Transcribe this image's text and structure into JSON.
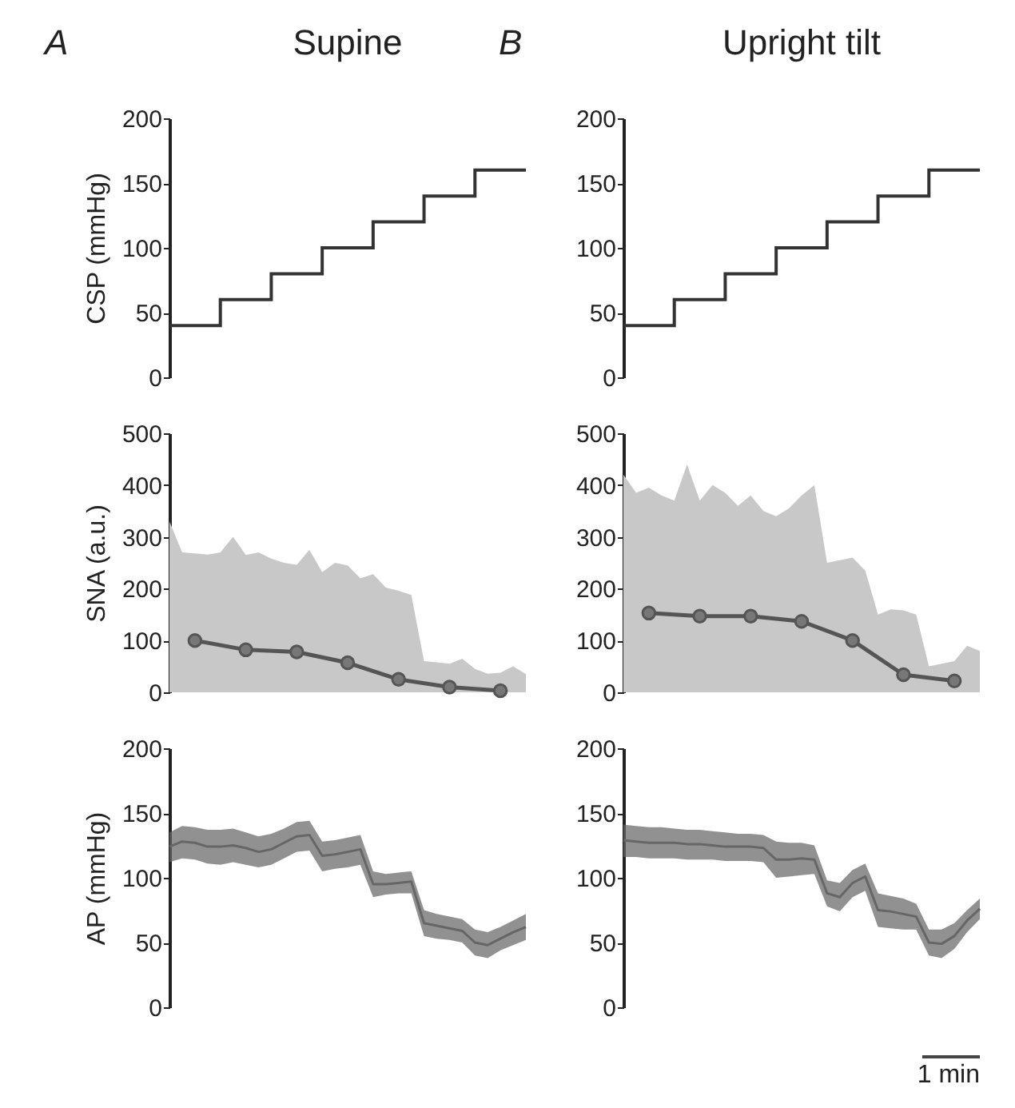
{
  "chart_data": [
    {
      "type": "step",
      "title": "Supine",
      "annotations": [
        "A"
      ],
      "ylabel": "CSP (mmHg)",
      "categories": [
        null,
        null,
        null,
        null,
        null,
        null,
        null,
        null
      ],
      "ylim": [
        0,
        200
      ],
      "yticks": [
        0,
        50,
        100,
        150,
        200
      ],
      "tick_labels": "y",
      "grid": false,
      "series": [
        {
          "color": "#333333",
          "values": [
            40,
            60,
            80,
            100,
            120,
            140,
            160,
            160
          ]
        }
      ]
    },
    {
      "type": "step",
      "title": "Upright tilt",
      "annotations": [
        "B"
      ],
      "categories": [
        null,
        null,
        null,
        null,
        null,
        null,
        null,
        null
      ],
      "ylim": [
        0,
        200
      ],
      "yticks": [
        0,
        50,
        100,
        150,
        200
      ],
      "tick_labels": "y",
      "grid": false,
      "series": [
        {
          "color": "#333333",
          "values": [
            40,
            60,
            80,
            100,
            120,
            140,
            160,
            160
          ]
        }
      ]
    },
    {
      "type": "line",
      "ylabel": "SNA (a.u.)",
      "categories": [
        null,
        null,
        null,
        null,
        null,
        null,
        null,
        null,
        null,
        null,
        null,
        null,
        null,
        null,
        null,
        null,
        null,
        null,
        null,
        null,
        null,
        null,
        null,
        null,
        null,
        null,
        null,
        null,
        null
      ],
      "ylim": [
        0,
        500
      ],
      "yticks": [
        0,
        100,
        200,
        300,
        400,
        500
      ],
      "tick_labels": "y",
      "grid": false,
      "series": [
        {
          "type": "area",
          "color": "#c8c8c8",
          "values": [
            330,
            270,
            268,
            266,
            270,
            300,
            265,
            270,
            258,
            250,
            246,
            275,
            232,
            250,
            245,
            220,
            228,
            202,
            196,
            188,
            60,
            58,
            55,
            65,
            45,
            36,
            38,
            50,
            35
          ]
        },
        {
          "color": "#555555",
          "marker": "circle",
          "values": [
            null,
            null,
            100,
            null,
            null,
            null,
            82,
            null,
            null,
            null,
            78,
            null,
            null,
            null,
            57,
            null,
            null,
            null,
            25,
            null,
            null,
            null,
            10,
            null,
            null,
            null,
            3,
            null,
            null
          ]
        }
      ]
    },
    {
      "type": "line",
      "categories": [
        null,
        null,
        null,
        null,
        null,
        null,
        null,
        null,
        null,
        null,
        null,
        null,
        null,
        null,
        null,
        null,
        null,
        null,
        null,
        null,
        null,
        null,
        null,
        null,
        null,
        null,
        null,
        null,
        null
      ],
      "ylim": [
        0,
        500
      ],
      "yticks": [
        0,
        100,
        200,
        300,
        400,
        500
      ],
      "tick_labels": "y",
      "grid": false,
      "series": [
        {
          "type": "area",
          "color": "#c8c8c8",
          "values": [
            420,
            385,
            395,
            380,
            370,
            440,
            370,
            400,
            385,
            360,
            380,
            350,
            340,
            355,
            380,
            400,
            250,
            255,
            260,
            235,
            150,
            160,
            158,
            150,
            50,
            55,
            60,
            90,
            80
          ]
        },
        {
          "color": "#555555",
          "marker": "circle",
          "values": [
            null,
            null,
            153,
            null,
            null,
            null,
            147,
            null,
            null,
            null,
            147,
            null,
            null,
            null,
            137,
            null,
            null,
            null,
            100,
            null,
            null,
            null,
            34,
            null,
            null,
            null,
            22,
            null,
            null
          ]
        }
      ]
    },
    {
      "type": "line",
      "ylabel": "AP (mmHg)",
      "categories": [
        null,
        null,
        null,
        null,
        null,
        null,
        null,
        null,
        null,
        null,
        null,
        null,
        null,
        null,
        null,
        null,
        null,
        null,
        null,
        null,
        null,
        null,
        null,
        null,
        null,
        null,
        null,
        null,
        null
      ],
      "ylim": [
        0,
        200
      ],
      "yticks": [
        0,
        50,
        100,
        150,
        200
      ],
      "tick_labels": "y",
      "grid": false,
      "series": [
        {
          "color": "#666666",
          "values": [
            124,
            128,
            127,
            124,
            124,
            125,
            123,
            120,
            122,
            127,
            132,
            133,
            117,
            118,
            120,
            122,
            95,
            95,
            96,
            97,
            65,
            63,
            61,
            59,
            50,
            48,
            53,
            58,
            62
          ],
          "lower": [
            112,
            115,
            114,
            111,
            110,
            112,
            110,
            108,
            110,
            115,
            120,
            121,
            105,
            107,
            108,
            110,
            85,
            87,
            88,
            88,
            55,
            53,
            52,
            50,
            40,
            38,
            44,
            48,
            52
          ],
          "upper": [
            135,
            140,
            139,
            137,
            137,
            138,
            135,
            132,
            134,
            138,
            143,
            144,
            128,
            129,
            131,
            133,
            105,
            103,
            104,
            105,
            75,
            72,
            70,
            68,
            60,
            58,
            62,
            67,
            72
          ]
        }
      ]
    },
    {
      "type": "line",
      "annotations": [
        "1 min"
      ],
      "categories": [
        null,
        null,
        null,
        null,
        null,
        null,
        null,
        null,
        null,
        null,
        null,
        null,
        null,
        null,
        null,
        null,
        null,
        null,
        null,
        null,
        null,
        null,
        null,
        null,
        null,
        null,
        null,
        null,
        null
      ],
      "ylim": [
        0,
        200
      ],
      "yticks": [
        0,
        50,
        100,
        150,
        200
      ],
      "tick_labels": "y",
      "grid": false,
      "series": [
        {
          "color": "#666666",
          "values": [
            129,
            128,
            127,
            127,
            127,
            126,
            126,
            125,
            124,
            124,
            124,
            123,
            114,
            114,
            115,
            114,
            88,
            85,
            96,
            101,
            75,
            74,
            72,
            70,
            50,
            49,
            55,
            67,
            76
          ],
          "lower": [
            116,
            116,
            115,
            115,
            115,
            114,
            114,
            114,
            113,
            113,
            113,
            112,
            100,
            101,
            102,
            103,
            78,
            74,
            85,
            90,
            62,
            61,
            60,
            60,
            40,
            38,
            45,
            58,
            68
          ],
          "upper": [
            141,
            140,
            139,
            139,
            138,
            137,
            137,
            136,
            135,
            134,
            134,
            133,
            128,
            127,
            127,
            125,
            98,
            96,
            106,
            111,
            88,
            86,
            84,
            80,
            60,
            60,
            65,
            75,
            84
          ]
        }
      ]
    }
  ]
}
